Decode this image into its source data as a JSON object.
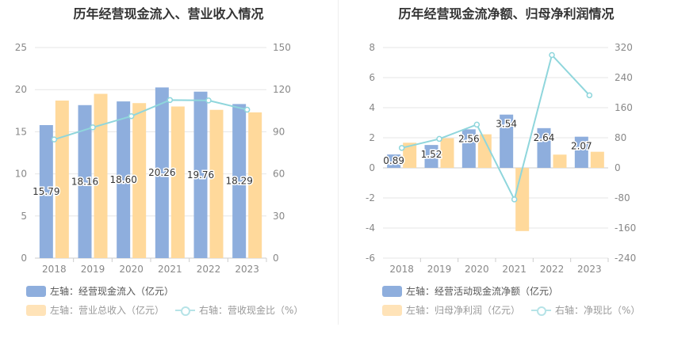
{
  "chart_data": [
    {
      "type": "bar",
      "title": "历年经营现金流入、营业收入情况",
      "categories": [
        "2018",
        "2019",
        "2020",
        "2021",
        "2022",
        "2023"
      ],
      "series": [
        {
          "name": "左轴：经营现金流入（亿元）",
          "axis": "left",
          "kind": "bar",
          "color": "#8eaedd",
          "values": [
            15.79,
            18.16,
            18.6,
            20.26,
            19.76,
            18.29
          ],
          "labels": [
            "15.79",
            "18.16",
            "18.60",
            "20.26",
            "19.76",
            "18.29"
          ]
        },
        {
          "name": "左轴：营业总收入（亿元）",
          "axis": "left",
          "kind": "bar",
          "color": "#ffd99b",
          "values": [
            18.7,
            19.5,
            18.4,
            18.0,
            17.6,
            17.3
          ]
        },
        {
          "name": "右轴：营收现金比（%）",
          "axis": "right",
          "kind": "line",
          "color": "#8fd6dc",
          "values": [
            84.5,
            93.1,
            101.1,
            112.6,
            112.3,
            105.7
          ]
        }
      ],
      "left_axis": {
        "min": 0,
        "max": 25,
        "ticks": [
          "0",
          "5",
          "10",
          "15",
          "20",
          "25"
        ]
      },
      "right_axis": {
        "min": 0,
        "max": 150,
        "ticks": [
          "0",
          "30",
          "60",
          "90",
          "120",
          "150"
        ]
      },
      "grid": true,
      "legend_position": "bottom-left"
    },
    {
      "type": "bar",
      "title": "历年经营现金流净额、归母净利润情况",
      "categories": [
        "2018",
        "2019",
        "2020",
        "2021",
        "2022",
        "2023"
      ],
      "series": [
        {
          "name": "左轴：经营活动现金流净额（亿元）",
          "axis": "left",
          "kind": "bar",
          "color": "#8eaedd",
          "values": [
            0.89,
            1.52,
            2.56,
            3.54,
            2.64,
            2.07
          ],
          "labels": [
            "0.89",
            "1.52",
            "2.56",
            "3.54",
            "2.64",
            "2.07"
          ]
        },
        {
          "name": "左轴：归母净利润（亿元）",
          "axis": "left",
          "kind": "bar",
          "color": "#ffd99b",
          "values": [
            1.67,
            1.97,
            2.23,
            -4.2,
            0.88,
            1.07
          ]
        },
        {
          "name": "右轴：净现比（%）",
          "axis": "right",
          "kind": "line",
          "color": "#8fd6dc",
          "values": [
            53,
            77,
            115,
            -84,
            300,
            193
          ]
        }
      ],
      "left_axis": {
        "min": -6,
        "max": 8,
        "ticks": [
          "-6",
          "-4",
          "-2",
          "0",
          "2",
          "4",
          "6",
          "8"
        ]
      },
      "right_axis": {
        "min": -240,
        "max": 320,
        "ticks": [
          "-240",
          "-160",
          "-80",
          "0",
          "80",
          "160",
          "240",
          "320"
        ]
      },
      "grid": true,
      "legend_position": "bottom-left"
    }
  ],
  "left_panel": {
    "title": "历年经营现金流入、营业收入情况",
    "legend": [
      "左轴：经营现金流入（亿元）",
      "左轴：营业总收入（亿元）",
      "右轴：营收现金比（%）"
    ]
  },
  "right_panel": {
    "title": "历年经营现金流净额、归母净利润情况",
    "legend": [
      "左轴：经营活动现金流净额（亿元）",
      "左轴：归母净利润（亿元）",
      "右轴：净现比（%）"
    ]
  }
}
